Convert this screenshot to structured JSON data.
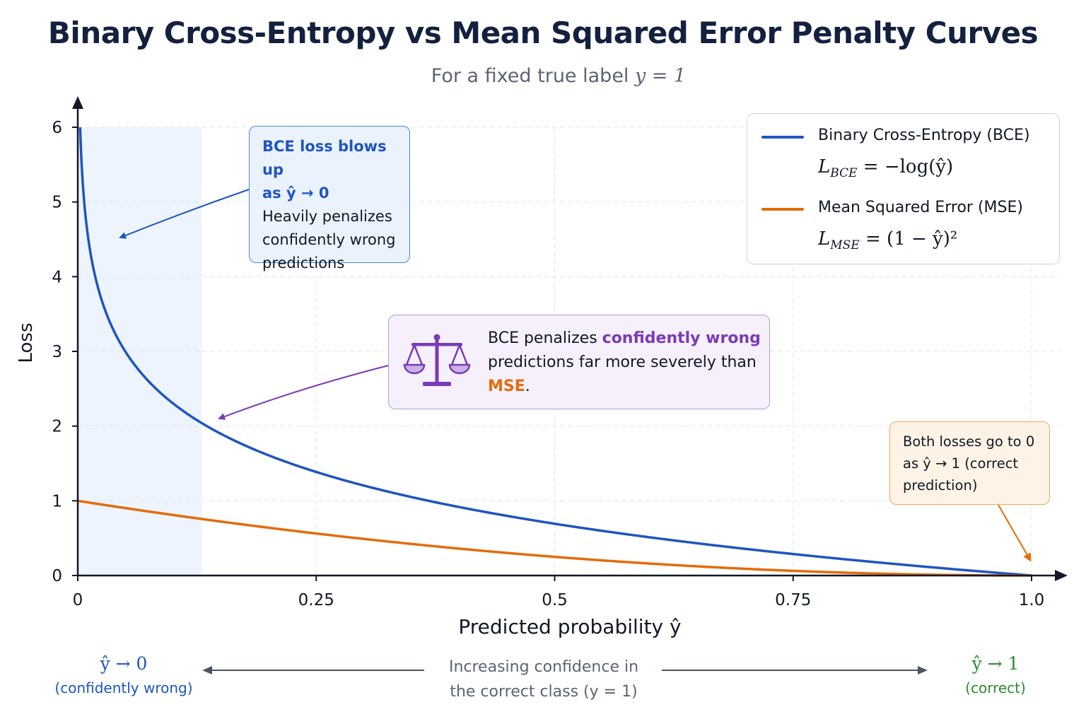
{
  "title": "Binary Cross-Entropy vs Mean Squared Error Penalty Curves",
  "subtitle": {
    "prefix": "For a fixed true label ",
    "expr": "y = 1"
  },
  "annotations": {
    "bce_blowup": {
      "heading1": "BCE loss blows up",
      "heading2": "as ŷ → 0",
      "body": [
        "Heavily penalizes",
        "confidently wrong",
        "predictions"
      ]
    },
    "comparison": {
      "part1": "BCE penalizes ",
      "part2": "confidently wrong",
      "part3": "predictions far more severely than ",
      "part4": "MSE",
      "part5": ".",
      "icon": "balance-scale-icon"
    },
    "both_zero": {
      "lines": [
        "Both losses go to 0",
        "as ŷ → 1 (correct",
        "prediction)"
      ]
    }
  },
  "legend": {
    "items": [
      {
        "name": "Binary Cross-Entropy (BCE)",
        "formula_main": "L",
        "formula_sub": "BCE",
        "formula_rest": " = −log(ŷ)",
        "color": "#1f55c0"
      },
      {
        "name": "Mean Squared Error (MSE)",
        "formula_main": "L",
        "formula_sub": "MSE",
        "formula_rest": " = (1 − ŷ)²",
        "color": "#e36c0a"
      }
    ]
  },
  "bottom": {
    "left_symbol": "ŷ → 0",
    "left_desc": "(confidently wrong)",
    "middle_line1": "Increasing confidence in",
    "middle_line2": "the correct class (y = 1)",
    "right_symbol": "ŷ → 1",
    "right_desc": "(correct)"
  },
  "chart_data": {
    "type": "line",
    "title": "Binary Cross-Entropy vs Mean Squared Error Penalty Curves",
    "subtitle": "For a fixed true label y = 1",
    "xlabel": "Predicted probability ŷ",
    "ylabel": "Loss",
    "xlim": [
      0,
      1
    ],
    "ylim": [
      0,
      6
    ],
    "xticks": [
      0,
      0.25,
      0.5,
      0.75,
      1.0
    ],
    "xtick_labels": [
      "0",
      "0.25",
      "0.5",
      "0.75",
      "1.0"
    ],
    "yticks": [
      0,
      1,
      2,
      3,
      4,
      5,
      6
    ],
    "yticks_labels": [
      "0",
      "1",
      "2",
      "3",
      "4",
      "5",
      "6"
    ],
    "grid": true,
    "legend_position": "top-right",
    "shaded_region_x": [
      0,
      0.13
    ],
    "x": [
      0.0025,
      0.01,
      0.02,
      0.03,
      0.05,
      0.08,
      0.1,
      0.13,
      0.15,
      0.2,
      0.25,
      0.3,
      0.4,
      0.5,
      0.6,
      0.7,
      0.75,
      0.8,
      0.9,
      1.0
    ],
    "series": [
      {
        "name": "Binary Cross-Entropy (BCE)",
        "color": "#1f55c0",
        "values": [
          6.0,
          4.61,
          3.91,
          3.51,
          3.0,
          2.53,
          2.3,
          2.04,
          1.9,
          1.61,
          1.39,
          1.2,
          0.92,
          0.69,
          0.51,
          0.36,
          0.29,
          0.22,
          0.11,
          0.0
        ]
      },
      {
        "name": "Mean Squared Error (MSE)",
        "color": "#e36c0a",
        "values": [
          0.995,
          0.98,
          0.96,
          0.941,
          0.9025,
          0.846,
          0.81,
          0.757,
          0.7225,
          0.64,
          0.5625,
          0.49,
          0.36,
          0.25,
          0.16,
          0.09,
          0.0625,
          0.04,
          0.01,
          0.0
        ]
      }
    ]
  }
}
